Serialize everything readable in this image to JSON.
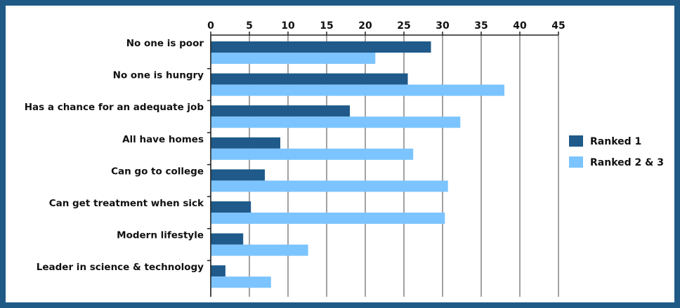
{
  "chart_data": {
    "type": "bar",
    "orientation": "horizontal",
    "categories": [
      "No one is poor",
      "No one is hungry",
      "Has a chance for an adequate job",
      "All have homes",
      "Can go to college",
      "Can get treatment when sick",
      "Modern lifestyle",
      "Leader in science & technology"
    ],
    "series": [
      {
        "name": "Ranked 1",
        "color": "#1f5a8a",
        "values": [
          28.5,
          25.5,
          18,
          9,
          7,
          5.2,
          4.2,
          1.9
        ]
      },
      {
        "name": "Ranked 2 & 3",
        "color": "#7cc4ff",
        "values": [
          21.3,
          38,
          32.3,
          26.2,
          30.7,
          30.3,
          12.6,
          7.8
        ]
      }
    ],
    "xlim": [
      0,
      45
    ],
    "xticks": [
      "0",
      "5",
      "10",
      "15",
      "20",
      "25",
      "30",
      "35",
      "40",
      "45"
    ],
    "xaxis_position": "top",
    "grid": true,
    "legend_position": "right",
    "title": "",
    "xlabel": "",
    "ylabel": ""
  }
}
